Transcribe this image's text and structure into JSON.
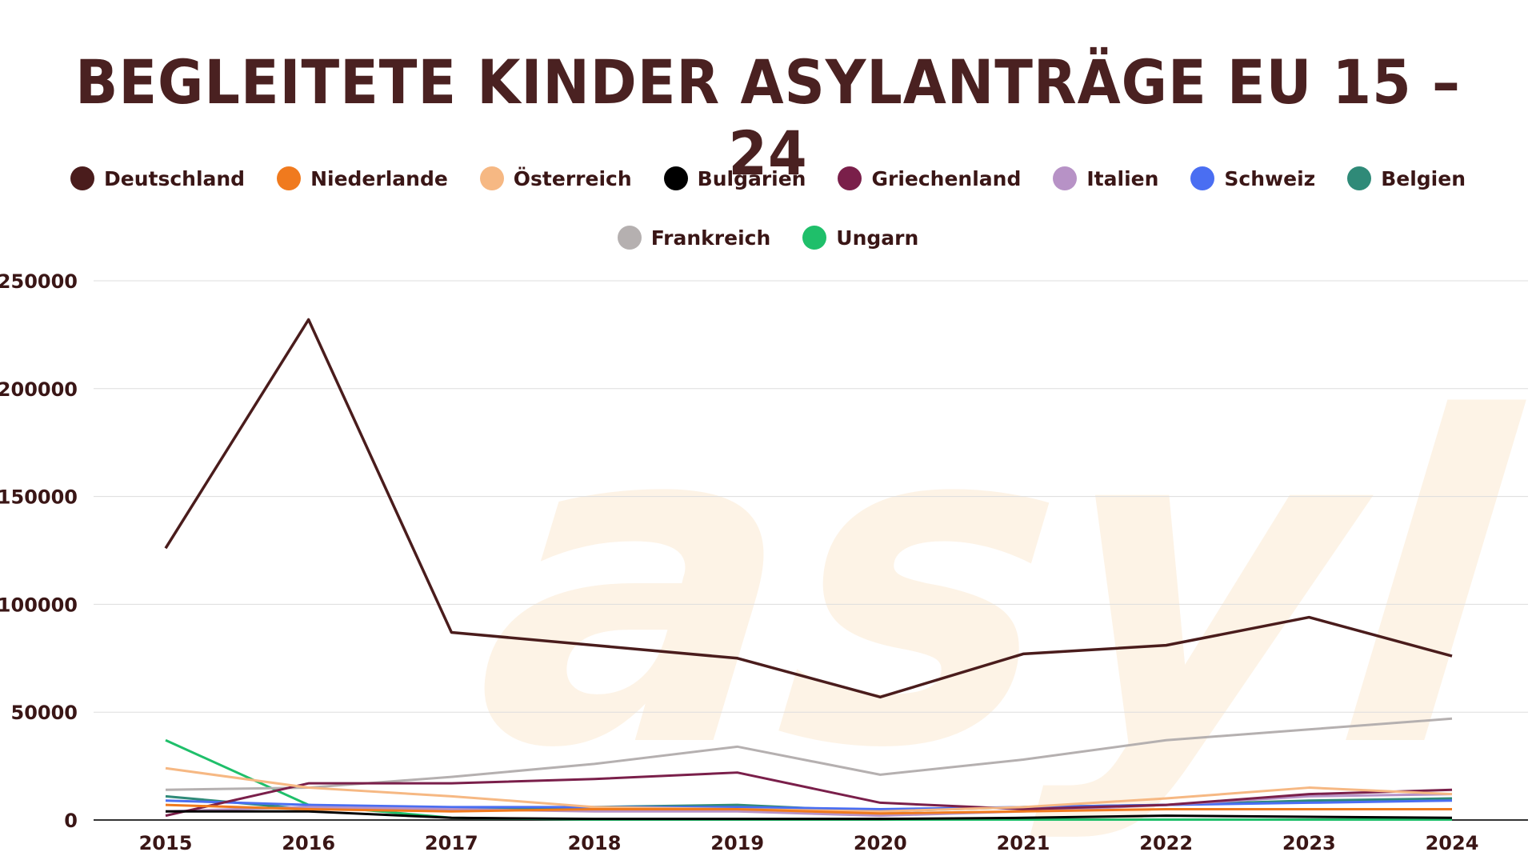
{
  "title": "BEGLEITETE KINDER ASYLANTRÄGE EU 15 – 24",
  "watermark": "asyl",
  "chart_data": {
    "type": "line",
    "title": "BEGLEITETE KINDER ASYLANTRÄGE EU 15 – 24",
    "xlabel": "",
    "ylabel": "",
    "ylim": [
      0,
      250000
    ],
    "yticks": [
      "250000",
      "200000",
      "150000",
      "100000",
      "50000",
      "0"
    ],
    "grid": true,
    "legend_position": "top-center",
    "categories": [
      "2015",
      "2016",
      "2017",
      "2018",
      "2019",
      "2020",
      "2021",
      "2022",
      "2023",
      "2024"
    ],
    "series": [
      {
        "name": "Deutschland",
        "color": "#4a1c1c",
        "values": [
          126000,
          232000,
          87000,
          81000,
          75000,
          57000,
          77000,
          81000,
          94000,
          76000
        ]
      },
      {
        "name": "Niederlande",
        "color": "#f07a1e",
        "values": [
          7000,
          5000,
          4000,
          5000,
          5000,
          3000,
          4000,
          5000,
          5000,
          5000
        ]
      },
      {
        "name": "Österreich",
        "color": "#f6b883",
        "values": [
          24000,
          15000,
          11000,
          6000,
          5000,
          4000,
          6000,
          10000,
          15000,
          12000
        ]
      },
      {
        "name": "Bulgarien",
        "color": "#000000",
        "values": [
          4000,
          4000,
          1000,
          500,
          500,
          500,
          1000,
          2000,
          1500,
          1000
        ]
      },
      {
        "name": "Griechenland",
        "color": "#7a1f4a",
        "values": [
          2000,
          17000,
          17000,
          19000,
          22000,
          8000,
          5000,
          7000,
          12000,
          14000
        ]
      },
      {
        "name": "Italien",
        "color": "#b792c6",
        "values": [
          4000,
          6000,
          5000,
          4000,
          4000,
          2000,
          4000,
          7000,
          11000,
          12000
        ]
      },
      {
        "name": "Schweiz",
        "color": "#4a6ef2",
        "values": [
          9000,
          7000,
          6000,
          6000,
          6000,
          5000,
          6000,
          7000,
          8000,
          9000
        ]
      },
      {
        "name": "Belgien",
        "color": "#2f8a78",
        "values": [
          11000,
          5000,
          5000,
          6000,
          7000,
          4000,
          6000,
          7000,
          9000,
          10000
        ]
      },
      {
        "name": "Frankreich",
        "color": "#b5b0b0",
        "values": [
          14000,
          15000,
          20000,
          26000,
          34000,
          21000,
          28000,
          37000,
          42000,
          47000
        ]
      },
      {
        "name": "Ungarn",
        "color": "#1fbf6a",
        "values": [
          37000,
          7000,
          1000,
          200,
          200,
          200,
          200,
          200,
          200,
          200
        ]
      }
    ]
  }
}
